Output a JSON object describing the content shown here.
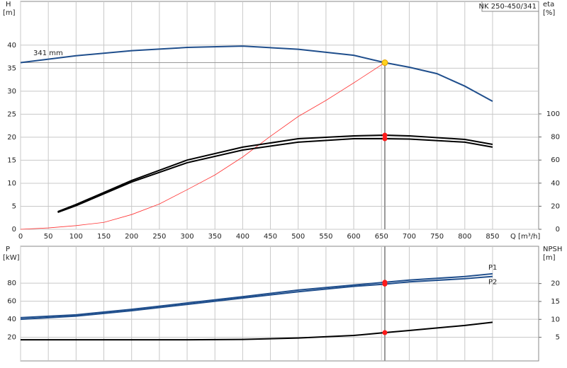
{
  "chart_data": [
    {
      "type": "line",
      "title": "NK 250-450/341",
      "annotation": "341 mm",
      "ylabel": "H",
      "yunit": "[m]",
      "y2label": "eta",
      "y2unit": "[%]",
      "xlabel": "Q [m³/h]",
      "xlim": [
        0,
        933
      ],
      "xticks": [
        0,
        50,
        100,
        150,
        200,
        250,
        300,
        350,
        400,
        450,
        500,
        550,
        600,
        650,
        700,
        750,
        800,
        850
      ],
      "ylim": [
        0,
        49.5
      ],
      "yticks": [
        0,
        5,
        10,
        15,
        20,
        25,
        30,
        35,
        40
      ],
      "y2lim": [
        0,
        197.5
      ],
      "y2ticks": [
        0,
        20,
        40,
        60,
        80,
        100
      ],
      "grid": true,
      "xtick_labels": true,
      "duty_point": {
        "x": 656,
        "y": 36.2
      },
      "series": [
        {
          "color": "#1f4e8c",
          "x": [
            0,
            100,
            200,
            300,
            400,
            500,
            600,
            656,
            700,
            750,
            800,
            850
          ],
          "values": [
            36.2,
            37.7,
            38.8,
            39.5,
            39.8,
            39.1,
            37.8,
            36.2,
            35.2,
            33.8,
            31.1,
            27.8
          ]
        },
        {
          "color": "#ff3333",
          "x": [
            0,
            50,
            100,
            150,
            200,
            250,
            300,
            350,
            400,
            450,
            500,
            550,
            600,
            656
          ],
          "values": [
            0,
            0.3,
            0.8,
            1.5,
            3.2,
            5.5,
            8.6,
            11.8,
            15.7,
            20.2,
            24.5,
            28,
            31.8,
            36.2
          ]
        },
        {
          "color": "#000000",
          "axis": "y2",
          "x": [
            67,
            100,
            200,
            300,
            400,
            500,
            600,
            656,
            700,
            800,
            850
          ],
          "values": [
            15.3,
            21.5,
            42.3,
            60,
            71.2,
            78.5,
            81,
            81.6,
            81,
            77.9,
            73.6
          ]
        },
        {
          "color": "#000000",
          "axis": "y2",
          "x": [
            67,
            100,
            200,
            300,
            400,
            500,
            600,
            656,
            700,
            800,
            850
          ],
          "values": [
            14.7,
            20.5,
            41,
            57.7,
            68.7,
            75.5,
            78.5,
            78.5,
            78.2,
            75.5,
            71.2
          ]
        }
      ]
    },
    {
      "type": "line",
      "ylabel": "P",
      "yunit": "[kW]",
      "y2label": "NPSH",
      "y2unit": "[m]",
      "xlim": [
        0,
        933
      ],
      "xticks": [
        0,
        50,
        100,
        150,
        200,
        250,
        300,
        350,
        400,
        450,
        500,
        550,
        600,
        650,
        700,
        750,
        800,
        850
      ],
      "ylim": [
        -6.3,
        121
      ],
      "yticks": [
        20,
        40,
        60,
        80
      ],
      "y2lim": [
        -1.6,
        30.4
      ],
      "y2ticks": [
        5,
        10,
        15,
        20
      ],
      "grid": true,
      "xtick_labels": false,
      "duty_point": {
        "x": 656
      },
      "series": [
        {
          "name": "P1",
          "color": "#1f4e8c",
          "x": [
            0,
            100,
            200,
            300,
            400,
            500,
            600,
            656,
            700,
            800,
            850
          ],
          "values": [
            41.7,
            44.9,
            51,
            58,
            65,
            72.4,
            78,
            81,
            83.5,
            87.4,
            90.5
          ]
        },
        {
          "name": "P2",
          "color": "#1f4e8c",
          "x": [
            0,
            100,
            200,
            300,
            400,
            500,
            600,
            656,
            700,
            800,
            850
          ],
          "values": [
            40,
            43.5,
            49.5,
            56.5,
            63.5,
            70.5,
            76.5,
            79,
            81.5,
            85,
            87.5
          ]
        },
        {
          "color": "#000000",
          "axis": "y2",
          "x": [
            0,
            100,
            200,
            300,
            400,
            500,
            600,
            656,
            700,
            800,
            850
          ],
          "values": [
            4.3,
            4.3,
            4.3,
            4.3,
            4.4,
            4.8,
            5.5,
            6.3,
            6.9,
            8.3,
            9.2
          ]
        }
      ]
    }
  ]
}
